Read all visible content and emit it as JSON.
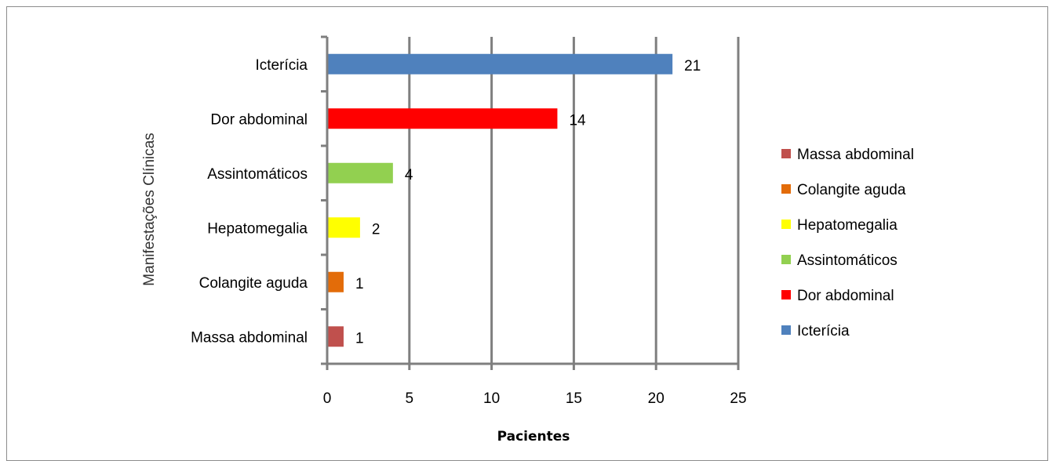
{
  "chart_data": {
    "type": "bar",
    "orientation": "horizontal",
    "categories": [
      "Icterícia",
      "Dor abdominal",
      "Assintomáticos",
      "Hepatomegalia",
      "Colangite aguda",
      "Massa abdominal"
    ],
    "values": [
      21,
      14,
      4,
      2,
      1,
      1
    ],
    "colors": [
      "#4f81bd",
      "#ff0000",
      "#92d050",
      "#ffff00",
      "#e36c09",
      "#c0504d"
    ],
    "xlabel": "Pacientes",
    "ylabel": "Manifestações Clínicas",
    "xlim": [
      0,
      25
    ],
    "xticks": [
      0,
      5,
      10,
      15,
      20,
      25
    ],
    "grid": true,
    "legend_position": "right",
    "legend": [
      {
        "name": "Massa abdominal",
        "color": "#c0504d"
      },
      {
        "name": "Colangite aguda",
        "color": "#e36c09"
      },
      {
        "name": "Hepatomegalia",
        "color": "#ffff00"
      },
      {
        "name": "Assintomáticos",
        "color": "#92d050"
      },
      {
        "name": "Dor abdominal",
        "color": "#ff0000"
      },
      {
        "name": "Icterícia",
        "color": "#4f81bd"
      }
    ]
  }
}
